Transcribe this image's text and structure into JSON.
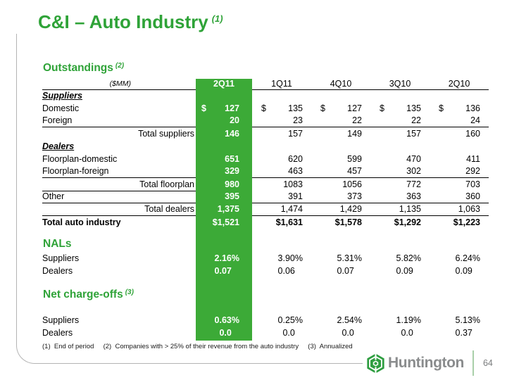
{
  "slide": {
    "title": "C&I – Auto Industry",
    "title_note": "(1)",
    "footnote": "(1)  End of period     (2)  Companies with > 25% of their revenue from the auto industry     (3)  Annualized",
    "logo_text": "Huntington",
    "page_number": "64",
    "colors": {
      "heading_green": "#2fa338",
      "highlight_column_green": "#3caa37",
      "logo_gray": "#8a8c8d"
    }
  },
  "table": {
    "unit_label": "($MM)",
    "columns": [
      "2Q11",
      "1Q11",
      "4Q10",
      "3Q10",
      "2Q10"
    ],
    "highlight_column": "2Q11",
    "sections": [
      {
        "id": "outstandings",
        "title": "Outstandings",
        "note": "(2)",
        "rows": [
          {
            "label": "Suppliers",
            "section_label": true
          },
          {
            "label": "Domestic",
            "dollar": true,
            "values": [
              "127",
              "135",
              "127",
              "135",
              "136"
            ]
          },
          {
            "label": "Foreign",
            "rule_below": true,
            "values": [
              "20",
              "23",
              "22",
              "22",
              "24"
            ]
          },
          {
            "label": "Total suppliers",
            "total": true,
            "values": [
              "146",
              "157",
              "149",
              "157",
              "160"
            ]
          },
          {
            "label": "Dealers",
            "section_label": true
          },
          {
            "label": "Floorplan-domestic",
            "values": [
              "651",
              "620",
              "599",
              "470",
              "411"
            ]
          },
          {
            "label": "Floorplan-foreign",
            "rule_below": true,
            "values": [
              "329",
              "463",
              "457",
              "302",
              "292"
            ]
          },
          {
            "label": "Total floorplan",
            "total": true,
            "label_rule": true,
            "values": [
              "980",
              "1083",
              "1056",
              "772",
              "703"
            ]
          },
          {
            "label": "Other",
            "rule_below": true,
            "values": [
              "395",
              "391",
              "373",
              "363",
              "360"
            ]
          },
          {
            "label": "Total dealers",
            "total": true,
            "rule_below": true,
            "values": [
              "1,375",
              "1,474",
              "1,429",
              "1,135",
              "1,063"
            ]
          },
          {
            "label": "Total auto industry",
            "bold": true,
            "values": [
              "$1,521",
              "$1,631",
              "$1,578",
              "$1,292",
              "$1,223"
            ]
          }
        ]
      },
      {
        "id": "nals",
        "title": "NALs",
        "note": "",
        "rows": [
          {
            "label": "Suppliers",
            "rate": true,
            "values": [
              "2.16%",
              "3.90%",
              "5.31%",
              "5.82%",
              "6.24%"
            ]
          },
          {
            "label": "Dealers",
            "rate": true,
            "values": [
              "0.07",
              "0.06",
              "0.07",
              "0.09",
              "0.09"
            ]
          }
        ]
      },
      {
        "id": "net_charge_offs",
        "title": "Net charge-offs",
        "note": "(3)",
        "rows": [
          {
            "label": "Suppliers",
            "rate": true,
            "values": [
              "0.63%",
              "0.25%",
              "2.54%",
              "1.19%",
              "5.13%"
            ]
          },
          {
            "label": "Dealers",
            "rate": true,
            "values": [
              "0.0",
              "0.0",
              "0.0",
              "0.0",
              "0.37"
            ]
          }
        ]
      }
    ]
  }
}
